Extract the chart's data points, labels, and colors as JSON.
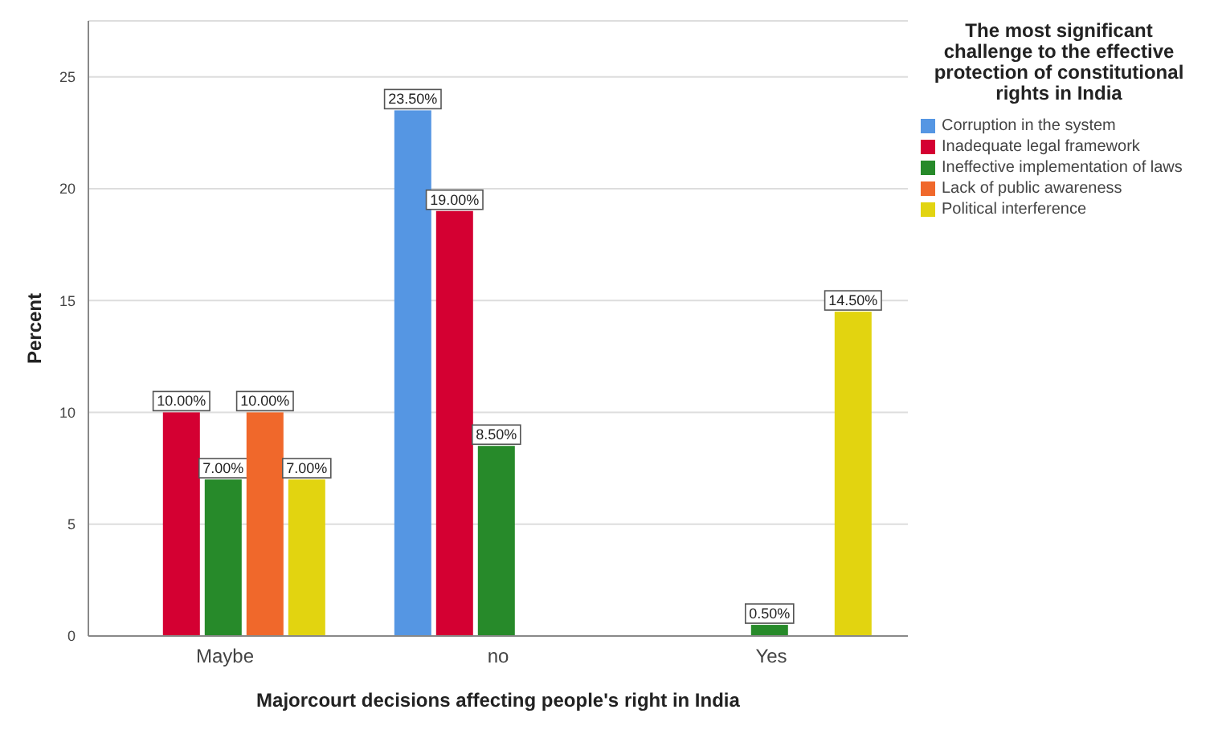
{
  "chart_data": {
    "type": "bar",
    "xlabel": "Majorcourt decisions affecting people's right in India",
    "ylabel": "Percent",
    "legend_title": "The most significant challenge to the effective protection of constitutional rights in India",
    "categories": [
      "Maybe",
      "no",
      "Yes"
    ],
    "series": [
      {
        "name": "Corruption in the system",
        "color": "#5596e3",
        "values": [
          null,
          23.5,
          null
        ],
        "value_labels": [
          null,
          "23.50%",
          null
        ]
      },
      {
        "name": "Inadequate legal framework",
        "color": "#d40032",
        "values": [
          10,
          19,
          null
        ],
        "value_labels": [
          "10.00%",
          "19.00%",
          null
        ]
      },
      {
        "name": "Ineffective implementation of laws",
        "color": "#278a2a",
        "values": [
          7,
          8.5,
          0.5
        ],
        "value_labels": [
          "7.00%",
          "8.50%",
          "0.50%"
        ]
      },
      {
        "name": "Lack of public awareness",
        "color": "#f0682b",
        "values": [
          10,
          null,
          null
        ],
        "value_labels": [
          "10.00%",
          null,
          null
        ]
      },
      {
        "name": "Political interference",
        "color": "#e2d410",
        "values": [
          7,
          null,
          14.5
        ],
        "value_labels": [
          "7.00%",
          null,
          "14.50%"
        ]
      }
    ],
    "ylim": [
      0,
      27.5
    ],
    "yticks": [
      0,
      5,
      10,
      15,
      20,
      25
    ],
    "grid": "y",
    "legend": "right"
  }
}
